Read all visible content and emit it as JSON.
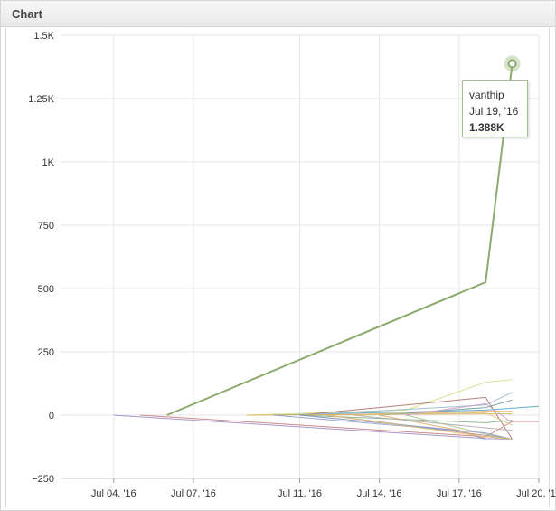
{
  "panel": {
    "title": "Chart"
  },
  "chart_data": {
    "type": "line",
    "title": "",
    "xlabel": "",
    "ylabel": "",
    "ylim": [
      -250,
      1500
    ],
    "y_ticks": [
      1500,
      1250,
      1000,
      750,
      500,
      250,
      0,
      -250
    ],
    "y_tick_labels": [
      "1.5K",
      "1.25K",
      "1K",
      "750",
      "500",
      "250",
      "0",
      "−250"
    ],
    "x_range": [
      "2016-07-02",
      "2016-07-20"
    ],
    "x_ticks": [
      "2016-07-04",
      "2016-07-07",
      "2016-07-11",
      "2016-07-14",
      "2016-07-17",
      "2016-07-20"
    ],
    "x_tick_labels": [
      "Jul 04, '16",
      "Jul 07, '16",
      "Jul 11, '16",
      "Jul 14, '16",
      "Jul 17, '16",
      "Jul 20, '16"
    ],
    "grid": true,
    "series": [
      {
        "name": "vanthip",
        "color": "#8daa6e",
        "width": 2,
        "points": [
          [
            "2016-07-06",
            0
          ],
          [
            "2016-07-18",
            525
          ],
          [
            "2016-07-19",
            1388
          ]
        ]
      },
      {
        "color": "#9c8cc4",
        "points": [
          [
            "2016-07-04",
            0
          ],
          [
            "2016-07-18",
            -92
          ],
          [
            "2016-07-19",
            -95
          ]
        ]
      },
      {
        "color": "#c77b7b",
        "points": [
          [
            "2016-07-05",
            0
          ],
          [
            "2016-07-18",
            -85
          ],
          [
            "2016-07-19",
            -25
          ],
          [
            "2016-07-20",
            -25
          ]
        ]
      },
      {
        "color": "#d7e08a",
        "points": [
          [
            "2016-07-09",
            0
          ],
          [
            "2016-07-15",
            20
          ],
          [
            "2016-07-18",
            130
          ],
          [
            "2016-07-19",
            140
          ]
        ]
      },
      {
        "color": "#5aa5c9",
        "points": [
          [
            "2016-07-10",
            0
          ],
          [
            "2016-07-18",
            20
          ],
          [
            "2016-07-20",
            35
          ]
        ]
      },
      {
        "color": "#b07070",
        "points": [
          [
            "2016-07-11",
            0
          ],
          [
            "2016-07-18",
            70
          ],
          [
            "2016-07-19",
            -95
          ]
        ]
      },
      {
        "color": "#9ab7c9",
        "points": [
          [
            "2016-07-11",
            0
          ],
          [
            "2016-07-18",
            40
          ],
          [
            "2016-07-19",
            90
          ]
        ]
      },
      {
        "color": "#d8b25a",
        "points": [
          [
            "2016-07-09",
            0
          ],
          [
            "2016-07-18",
            5
          ],
          [
            "2016-07-19",
            5
          ]
        ]
      },
      {
        "color": "#e0b05a",
        "points": [
          [
            "2016-07-12",
            0
          ],
          [
            "2016-07-18",
            15
          ],
          [
            "2016-07-19",
            15
          ]
        ]
      },
      {
        "color": "#86b38a",
        "points": [
          [
            "2016-07-11",
            0
          ],
          [
            "2016-07-18",
            -30
          ],
          [
            "2016-07-19",
            -20
          ]
        ]
      },
      {
        "color": "#c48a9e",
        "points": [
          [
            "2016-07-12",
            0
          ],
          [
            "2016-07-18",
            -80
          ],
          [
            "2016-07-19",
            -95
          ]
        ]
      },
      {
        "color": "#7f8fbf",
        "points": [
          [
            "2016-07-11",
            0
          ],
          [
            "2016-07-17",
            -60
          ],
          [
            "2016-07-18",
            -95
          ]
        ]
      },
      {
        "color": "#e8a868",
        "points": [
          [
            "2016-07-14",
            0
          ],
          [
            "2016-07-17",
            -60
          ],
          [
            "2016-07-18",
            -90
          ]
        ]
      },
      {
        "color": "#b0b0b0",
        "points": [
          [
            "2016-07-13",
            0
          ],
          [
            "2016-07-18",
            -50
          ],
          [
            "2016-07-19",
            -60
          ]
        ]
      },
      {
        "color": "#6fa0a0",
        "points": [
          [
            "2016-07-14",
            0
          ],
          [
            "2016-07-18",
            30
          ],
          [
            "2016-07-19",
            60
          ]
        ]
      },
      {
        "color": "#d9c07a",
        "points": [
          [
            "2016-07-13",
            0
          ],
          [
            "2016-07-18",
            10
          ],
          [
            "2016-07-19",
            -40
          ]
        ]
      },
      {
        "color": "#a4c48a",
        "points": [
          [
            "2016-07-15",
            0
          ],
          [
            "2016-07-18",
            -75
          ],
          [
            "2016-07-19",
            -95
          ]
        ]
      },
      {
        "color": "#8fa0c8",
        "points": [
          [
            "2016-07-10",
            0
          ],
          [
            "2016-07-18",
            -70
          ],
          [
            "2016-07-19",
            -95
          ]
        ]
      },
      {
        "color": "#c9a0c9",
        "points": [
          [
            "2016-07-15",
            0
          ],
          [
            "2016-07-18",
            45
          ],
          [
            "2016-07-19",
            -30
          ]
        ]
      },
      {
        "color": "#e0c870",
        "points": [
          [
            "2016-07-12",
            0
          ],
          [
            "2016-07-18",
            -85
          ],
          [
            "2016-07-19",
            -95
          ]
        ]
      }
    ],
    "tooltip": {
      "series": "vanthip",
      "date": "Jul 19, '16",
      "value": "1.388K"
    }
  }
}
